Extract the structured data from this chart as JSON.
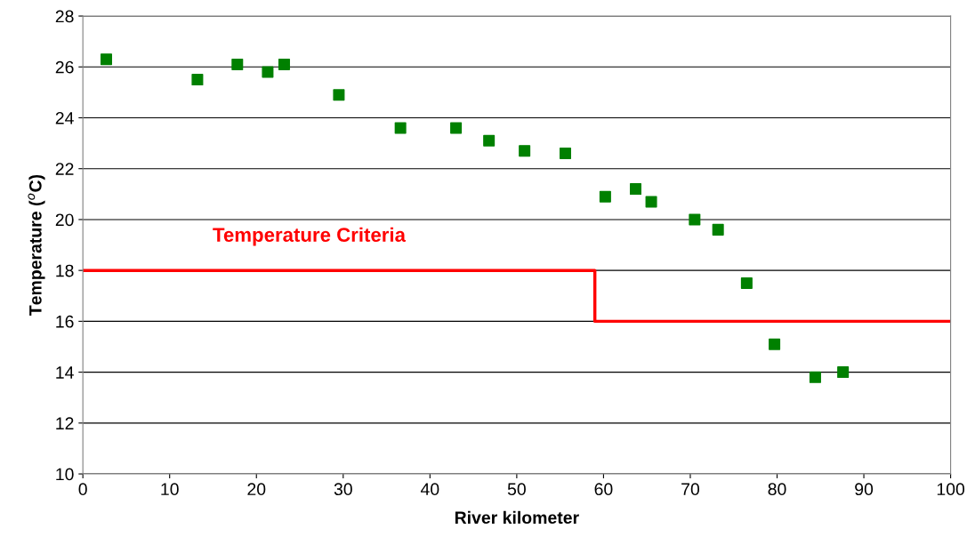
{
  "chart_data": {
    "type": "scatter",
    "xlabel": "River kilometer",
    "ylabel": "Temperature ($^{o}$C)",
    "xlim": [
      0,
      100
    ],
    "xticks": [
      0,
      10,
      20,
      30,
      40,
      50,
      60,
      70,
      80,
      90,
      100
    ],
    "ylim": [
      10,
      28
    ],
    "yticks": [
      10,
      12,
      14,
      16,
      18,
      20,
      22,
      24,
      26,
      28
    ],
    "grid": "y",
    "series": [
      {
        "marker": "square",
        "color": "#008000",
        "x": [
          2.7,
          13.2,
          17.8,
          21.3,
          23.2,
          29.5,
          36.6,
          43.0,
          46.8,
          50.9,
          55.6,
          60.2,
          63.7,
          65.5,
          70.5,
          73.2,
          76.5,
          79.7,
          84.4,
          87.6
        ],
        "values": [
          26.3,
          25.5,
          26.1,
          25.8,
          26.1,
          24.9,
          23.6,
          23.6,
          23.1,
          22.7,
          22.6,
          20.9,
          21.2,
          20.7,
          20.0,
          19.6,
          17.5,
          15.1,
          13.8,
          14.0
        ]
      },
      {
        "type": "line",
        "name": "Temperature Criteria",
        "color": "#ff0000",
        "line_style": "solid",
        "x": [
          0,
          59,
          59,
          100
        ],
        "values": [
          18,
          18,
          16,
          16
        ]
      }
    ]
  }
}
